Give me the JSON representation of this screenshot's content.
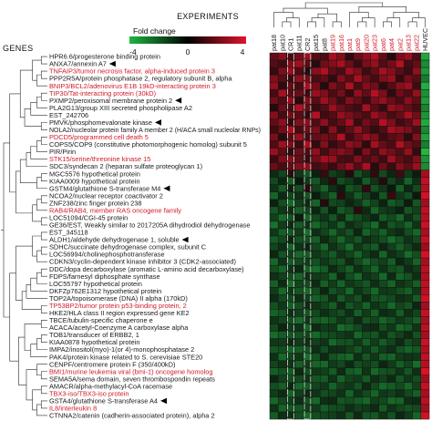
{
  "header": {
    "experiments_title": "EXPERIMENTS",
    "genes_title": "GENES"
  },
  "scale": {
    "title": "Fold change",
    "min_label": "-4",
    "mid_label": "0",
    "max_label": "4",
    "colors": {
      "low": "#1fb541",
      "mid": "#000000",
      "high": "#e0142a"
    }
  },
  "samples": [
    {
      "label": "pat18",
      "color": "#1a1a1a"
    },
    {
      "label": "pat10",
      "color": "#1a1a1a"
    },
    {
      "label": "CR1",
      "color": "#1a1a1a"
    },
    {
      "label": "pat11",
      "color": "#1a1a1a"
    },
    {
      "label": "CR2",
      "color": "#1a1a1a"
    },
    {
      "label": "pat15",
      "color": "#1a1a1a"
    },
    {
      "label": "pat8",
      "color": "#1a1a1a"
    },
    {
      "label": "pat19",
      "color": "#d11a2a"
    },
    {
      "label": "pat16",
      "color": "#d11a2a"
    },
    {
      "label": "pat1",
      "color": "#d11a2a"
    },
    {
      "label": "pat9",
      "color": "#d11a2a"
    },
    {
      "label": "pat20",
      "color": "#d11a2a"
    },
    {
      "label": "pat23",
      "color": "#d11a2a"
    },
    {
      "label": "pat6",
      "color": "#d11a2a"
    },
    {
      "label": "pat4",
      "color": "#d11a2a"
    },
    {
      "label": "pat2",
      "color": "#d11a2a"
    },
    {
      "label": "pat13",
      "color": "#d11a2a"
    },
    {
      "label": "pat22",
      "color": "#d11a2a"
    },
    {
      "label": "HUVEC",
      "color": "#1a1a1a"
    }
  ],
  "genes": [
    {
      "label": "HPR6.6/progesterone binding protein",
      "color": "#1a1a1a",
      "marked": false
    },
    {
      "label": "ANXA7/annexin A7",
      "color": "#1a1a1a",
      "marked": true
    },
    {
      "label": "TNFAIP3/tumor necrosis factor, alpha-induced protein 3",
      "color": "#d11a2a",
      "marked": false
    },
    {
      "label": "PPP2R5A/protein phosphatase 2, regulatory subunit B, alpha",
      "color": "#1a1a1a",
      "marked": false
    },
    {
      "label": "BNIP3/BCL2/adenovirus E1B 19kD-interacting protein 3",
      "color": "#d11a2a",
      "marked": false
    },
    {
      "label": "TIP30/Tat-interacting protein (30kD)",
      "color": "#d11a2a",
      "marked": false
    },
    {
      "label": "PXMP2/peroxisomal membrane protein 2",
      "color": "#1a1a1a",
      "marked": true
    },
    {
      "label": "PLA2G13/group XIII secreted phospholipase A2",
      "color": "#1a1a1a",
      "marked": false
    },
    {
      "label": "EST_242706",
      "color": "#1a1a1a",
      "marked": false
    },
    {
      "label": "PMVK/phosphomevalonate kinase",
      "color": "#1a1a1a",
      "marked": true
    },
    {
      "label": "NOLA2/nucleolar protein family A member 2 (H/ACA small nucleolar RNPs)",
      "color": "#1a1a1a",
      "marked": false
    },
    {
      "label": "PDCD5/programmed cell death 5",
      "color": "#d11a2a",
      "marked": false
    },
    {
      "label": "COPS5/COP9 (constitutive photomorphogenic homolog) subunit 5",
      "color": "#1a1a1a",
      "marked": false
    },
    {
      "label": "PIR/Pirin",
      "color": "#1a1a1a",
      "marked": false
    },
    {
      "label": "STK15/serine/threonine kinase 15",
      "color": "#d11a2a",
      "marked": false
    },
    {
      "label": "SDC3/syndecan 2 (heparan sulfate proteoglycan 1)",
      "color": "#1a1a1a",
      "marked": false
    },
    {
      "label": "MGC5576 hypothetical protein",
      "color": "#1a1a1a",
      "marked": false
    },
    {
      "label": "KIAA0009 hypothetical protein",
      "color": "#1a1a1a",
      "marked": false
    },
    {
      "label": "GSTM4/glutathione S-transferase M4",
      "color": "#1a1a1a",
      "marked": true
    },
    {
      "label": "NCOA2/nuclear receptor coactivator 2",
      "color": "#1a1a1a",
      "marked": false
    },
    {
      "label": "ZNF238/zinc finger protein 238",
      "color": "#1a1a1a",
      "marked": false
    },
    {
      "label": "RAB4/RAB4, member RAS oncogene family",
      "color": "#d11a2a",
      "marked": false
    },
    {
      "label": "LOC51094/CGI-45 protein",
      "color": "#1a1a1a",
      "marked": false
    },
    {
      "label": "GE36/EST, Weakly similar to 2017205A dihydrodiol dehydrogenase",
      "color": "#1a1a1a",
      "marked": false
    },
    {
      "label": "EST_345118",
      "color": "#1a1a1a",
      "marked": false
    },
    {
      "label": "ALDH1/aldehyde dehydrogenase 1, soluble",
      "color": "#1a1a1a",
      "marked": true
    },
    {
      "label": "SDHC/succinate dehydrogenase complex, subunit C",
      "color": "#1a1a1a",
      "marked": false
    },
    {
      "label": "LOC56994/cholinephosphotransferase",
      "color": "#1a1a1a",
      "marked": false
    },
    {
      "label": "CDKN3/cyclin-dependent kinase inhibitor 3 (CDK2-associated)",
      "color": "#1a1a1a",
      "marked": false
    },
    {
      "label": "DDC/dopa decarboxylase (aromatic L-amino acid decarboxylase)",
      "color": "#1a1a1a",
      "marked": false
    },
    {
      "label": "FDPS/farnesyl diphosphate synthase",
      "color": "#1a1a1a",
      "marked": false
    },
    {
      "label": "LOC55797 hypothetical protein",
      "color": "#1a1a1a",
      "marked": false
    },
    {
      "label": "DKFZp762E1312 hypothetical protein",
      "color": "#1a1a1a",
      "marked": false
    },
    {
      "label": "TOP2A/topoisomerase (DNA) II alpha (170kD)",
      "color": "#1a1a1a",
      "marked": false
    },
    {
      "label": "TP53BP2/tumor protein p53-binding protein, 2",
      "color": "#d11a2a",
      "marked": false
    },
    {
      "label": "HKE2/HLA class II region expressed gene KE2",
      "color": "#1a1a1a",
      "marked": false
    },
    {
      "label": "TBCE/tubulin-specific chaperone e",
      "color": "#1a1a1a",
      "marked": false
    },
    {
      "label": "ACACA/acetyl-Coenzyme A carboxylase alpha",
      "color": "#1a1a1a",
      "marked": false
    },
    {
      "label": "TOB1/transducer of ERBB2, 1",
      "color": "#1a1a1a",
      "marked": false
    },
    {
      "label": "KIAA0878 hypothetical protein",
      "color": "#1a1a1a",
      "marked": false
    },
    {
      "label": "IMPA2/inositol(myo)-1(or 4)-monophosphatase 2",
      "color": "#1a1a1a",
      "marked": false
    },
    {
      "label": "PAK4/protein kinase related to S. cerevisiae STE20",
      "color": "#1a1a1a",
      "marked": false
    },
    {
      "label": "CENPF/centromere protein F (350/400kD)",
      "color": "#1a1a1a",
      "marked": false
    },
    {
      "label": "BMI1/murine leukemia viral (bmi-1) oncogene homolog",
      "color": "#d11a2a",
      "marked": false
    },
    {
      "label": "SEMA5A/sema domain, seven thrombospondin repeats",
      "color": "#1a1a1a",
      "marked": false
    },
    {
      "label": "AMACR/alpha-methylacyl-CoA racemase",
      "color": "#1a1a1a",
      "marked": false
    },
    {
      "label": "TBX3-iso/TBX3-iso protein",
      "color": "#d11a2a",
      "marked": false
    },
    {
      "label": "GSTA4/glutathione S-transferase A4",
      "color": "#1a1a1a",
      "marked": true
    },
    {
      "label": "IL8/interleukin 8",
      "color": "#d11a2a",
      "marked": false
    },
    {
      "label": "CTNNA2/catenin (cadherin-associated protein), alpha 2",
      "color": "#1a1a1a",
      "marked": false
    }
  ],
  "heatmap_matrix": [
    [
      1.4,
      2.1,
      0.8,
      1.7,
      2.3,
      1.1,
      0.9,
      2.6,
      1.9,
      0.4,
      1.5,
      2.2,
      2.8,
      1.3,
      0.2,
      1.8,
      2.4,
      1.0,
      -3.4
    ],
    [
      1.1,
      0.7,
      1.9,
      2.5,
      1.2,
      0.3,
      1.6,
      2.0,
      2.7,
      1.5,
      0.6,
      1.8,
      2.3,
      1.0,
      1.7,
      2.9,
      0.8,
      1.4,
      -2.8
    ],
    [
      0.5,
      1.8,
      2.4,
      1.0,
      0.2,
      2.1,
      2.8,
      1.3,
      0.9,
      2.5,
      1.9,
      0.7,
      1.4,
      2.6,
      2.0,
      1.2,
      0.6,
      2.2,
      -3.1
    ],
    [
      1.9,
      1.2,
      0.6,
      2.2,
      1.6,
      0.9,
      1.3,
      0.4,
      2.0,
      1.1,
      2.7,
      1.5,
      0.8,
      1.9,
      2.4,
      0.5,
      1.7,
      1.2,
      -2.4
    ],
    [
      2.3,
      0.4,
      1.4,
      0.8,
      2.6,
      1.7,
      0.2,
      1.9,
      1.2,
      2.8,
      0.9,
      2.0,
      1.6,
      0.3,
      1.1,
      2.1,
      2.5,
      0.7,
      -3.6
    ],
    [
      0.8,
      2.6,
      1.1,
      1.5,
      0.6,
      2.4,
      1.9,
      0.9,
      1.7,
      0.5,
      2.2,
      1.3,
      2.9,
      1.8,
      0.4,
      1.6,
      1.0,
      2.3,
      -2.9
    ],
    [
      1.6,
      1.0,
      2.2,
      0.3,
      1.9,
      1.2,
      2.5,
      1.6,
      0.7,
      2.0,
      1.4,
      0.6,
      1.8,
      2.3,
      1.5,
      0.9,
      2.1,
      1.3,
      -3.2
    ],
    [
      0.2,
      1.5,
      0.9,
      2.8,
      1.3,
      0.6,
      1.1,
      2.4,
      1.5,
      1.0,
      0.7,
      2.6,
      1.2,
      0.5,
      2.3,
      1.9,
      1.4,
      0.8,
      -2.6
    ],
    [
      2.0,
      0.8,
      1.7,
      1.2,
      0.4,
      2.9,
      0.7,
      1.1,
      2.3,
      1.8,
      1.3,
      0.9,
      2.4,
      1.7,
      0.8,
      1.4,
      2.7,
      1.6,
      -3.0
    ],
    [
      1.3,
      2.2,
      0.5,
      1.9,
      2.1,
      1.0,
      2.2,
      0.8,
      1.4,
      2.6,
      0.6,
      1.7,
      1.1,
      2.9,
      1.9,
      0.7,
      1.2,
      2.5,
      -3.5
    ],
    [
      0.7,
      1.6,
      2.7,
      0.9,
      1.5,
      1.8,
      0.4,
      2.1,
      0.6,
      1.3,
      2.4,
      1.2,
      0.5,
      1.0,
      2.6,
      2.2,
      1.8,
      0.9,
      -2.7
    ],
    [
      1.8,
      0.3,
      1.2,
      2.4,
      0.8,
      1.4,
      1.7,
      1.3,
      2.8,
      0.7,
      1.6,
      2.3,
      1.9,
      0.6,
      1.2,
      1.5,
      0.4,
      2.0,
      -3.3
    ],
    [
      1.0,
      2.5,
      1.8,
      0.6,
      2.7,
      0.5,
      2.0,
      0.5,
      1.1,
      2.2,
      1.8,
      0.4,
      2.6,
      1.4,
      0.9,
      2.8,
      1.6,
      1.1,
      -2.5
    ],
    [
      2.4,
      1.3,
      0.4,
      1.6,
      1.0,
      2.2,
      0.8,
      1.7,
      2.1,
      1.6,
      0.3,
      1.9,
      0.8,
      2.2,
      1.7,
      1.0,
      2.3,
      0.5,
      -3.8
    ],
    [
      0.6,
      1.9,
      2.0,
      1.3,
      0.5,
      1.6,
      2.6,
      2.3,
      0.9,
      0.8,
      2.0,
      1.0,
      1.5,
      0.7,
      2.5,
      1.3,
      0.9,
      1.9,
      -3.0
    ],
    [
      1.5,
      0.9,
      1.3,
      2.0,
      2.2,
      0.8,
      1.2,
      0.6,
      1.6,
      2.4,
      1.1,
      2.7,
      0.3,
      1.6,
      0.6,
      2.0,
      1.3,
      2.4,
      -2.8
    ],
    [
      -0.6,
      -1.2,
      0.3,
      -0.9,
      -1.6,
      -0.4,
      0.5,
      -1.1,
      -0.7,
      0.2,
      -1.5,
      -0.8,
      0.4,
      -1.3,
      -0.5,
      0.6,
      -1.0,
      -0.3,
      2.6
    ],
    [
      -1.3,
      -0.5,
      -1.8,
      -0.2,
      -0.9,
      -1.6,
      -0.6,
      0.3,
      -1.4,
      -1.0,
      -0.4,
      -1.7,
      -0.8,
      0.2,
      -1.2,
      -0.6,
      -1.9,
      -0.7,
      3.1
    ],
    [
      -0.8,
      -1.7,
      -0.4,
      -1.4,
      0.2,
      -1.1,
      -1.9,
      -0.7,
      -0.3,
      -1.6,
      -1.2,
      0.4,
      -1.5,
      -0.9,
      -0.2,
      -1.8,
      -0.5,
      -1.3,
      2.8
    ],
    [
      -1.9,
      -0.6,
      -1.2,
      -0.7,
      -1.5,
      -0.3,
      -1.0,
      -1.8,
      0.3,
      -0.8,
      -1.7,
      -1.1,
      -0.4,
      -1.6,
      0.5,
      -0.9,
      -1.4,
      -0.2,
      3.4
    ],
    [
      -0.4,
      -1.4,
      -2.0,
      -1.1,
      -0.6,
      -1.9,
      0.2,
      -1.3,
      -1.1,
      -0.5,
      -0.9,
      -1.8,
      -1.2,
      -0.4,
      -1.7,
      -1.3,
      -0.3,
      -1.6,
      2.5
    ],
    [
      -1.6,
      -0.9,
      -0.7,
      -1.8,
      -1.2,
      -0.5,
      -1.5,
      -0.4,
      -1.7,
      -1.3,
      0.3,
      -0.6,
      -1.9,
      -1.0,
      -0.8,
      -0.4,
      -1.6,
      -1.1,
      3.0
    ],
    [
      -1.1,
      -2.1,
      -1.5,
      -0.3,
      -1.9,
      -1.3,
      -0.8,
      -1.6,
      -0.6,
      -1.9,
      -1.4,
      -0.9,
      -0.5,
      -1.7,
      -1.3,
      -2.0,
      -0.7,
      -1.5,
      2.9
    ],
    [
      -2.2,
      -1.0,
      -0.6,
      -1.7,
      -0.8,
      -2.0,
      -1.4,
      -0.9,
      -1.8,
      -0.7,
      -1.1,
      -1.5,
      -2.1,
      -0.6,
      -1.6,
      -1.2,
      -1.9,
      -0.8,
      3.3
    ],
    [
      -0.9,
      -1.8,
      -1.6,
      -1.0,
      -2.1,
      -0.7,
      -1.2,
      -2.0,
      -1.0,
      -1.5,
      -0.5,
      -1.9,
      -1.3,
      -1.8,
      -0.9,
      -0.6,
      -1.4,
      -2.0,
      2.7
    ],
    [
      -1.7,
      -1.3,
      -0.5,
      -1.5,
      -1.4,
      -1.8,
      -0.6,
      -1.2,
      -2.0,
      -1.1,
      -1.6,
      -0.7,
      -1.0,
      -1.4,
      -2.1,
      -1.5,
      -0.8,
      -1.3,
      3.2
    ],
    [
      -1.2,
      -0.7,
      -1.9,
      -0.8,
      -0.5,
      -1.2,
      -2.0,
      -0.8,
      -1.3,
      -2.1,
      -0.9,
      -1.4,
      -1.7,
      -0.5,
      -1.1,
      -1.8,
      -1.2,
      -0.6,
      2.4
    ],
    [
      -0.5,
      -1.5,
      -1.1,
      -2.0,
      -1.7,
      -0.9,
      -1.3,
      -1.7,
      -0.8,
      -1.2,
      -1.9,
      -1.0,
      -0.6,
      -1.9,
      -0.7,
      -1.1,
      -2.1,
      -1.4,
      3.5
    ],
    [
      -2.0,
      -0.8,
      -1.7,
      -1.3,
      -1.0,
      -1.5,
      -0.9,
      -1.4,
      -1.6,
      -0.6,
      -1.3,
      -2.0,
      -1.4,
      -1.1,
      -1.8,
      -0.5,
      -1.0,
      -1.9,
      2.6
    ],
    [
      -1.4,
      -1.9,
      -0.8,
      -0.6,
      -1.8,
      -2.1,
      -1.7,
      -0.6,
      -1.2,
      -1.8,
      -0.7,
      -1.2,
      -1.9,
      -0.8,
      -1.4,
      -1.6,
      -0.6,
      -1.0,
      3.0
    ],
    [
      -0.7,
      -1.1,
      -1.4,
      -1.9,
      -0.7,
      -1.0,
      -1.1,
      -1.9,
      -0.5,
      -1.4,
      -2.0,
      -0.8,
      -1.1,
      -2.0,
      -0.6,
      -1.9,
      -1.5,
      -0.7,
      2.8
    ],
    [
      -1.8,
      -0.6,
      -2.1,
      -1.2,
      -1.3,
      -0.6,
      -1.8,
      -1.0,
      -1.9,
      -0.9,
      -1.2,
      -1.6,
      -0.7,
      -1.3,
      -1.9,
      -0.8,
      -1.1,
      -1.8,
      3.1
    ],
    [
      -1.0,
      -2.0,
      -0.9,
      -1.6,
      -2.0,
      -1.4,
      -0.5,
      -1.5,
      -1.1,
      -2.0,
      -0.8,
      -1.3,
      -2.0,
      -0.9,
      -1.0,
      -1.4,
      -1.8,
      -0.9,
      2.9
    ],
    [
      -0.6,
      -1.3,
      -1.3,
      -0.7,
      -1.1,
      -1.8,
      -1.6,
      -0.7,
      -1.7,
      -1.0,
      -1.5,
      -0.6,
      -1.5,
      -1.6,
      -1.3,
      -0.7,
      -0.9,
      -1.7,
      3.4
    ],
    [
      -1.5,
      -0.9,
      -1.8,
      -1.4,
      -0.6,
      -0.8,
      -1.2,
      -1.8,
      -0.6,
      -1.6,
      -1.1,
      -1.9,
      -0.8,
      -1.2,
      -2.0,
      -1.2,
      -1.6,
      -0.5,
      2.5
    ],
    [
      -1.9,
      -1.6,
      -0.7,
      -1.1,
      -1.6,
      -1.3,
      -0.7,
      -1.1,
      -1.4,
      -0.7,
      -1.8,
      -1.0,
      -1.8,
      -0.6,
      -0.8,
      -1.7,
      -0.7,
      -1.2,
      3.2
    ],
    [
      -0.8,
      -1.2,
      -1.5,
      -2.1,
      -0.9,
      -1.7,
      -1.9,
      -1.6,
      -0.9,
      -1.3,
      -0.6,
      -1.5,
      -1.2,
      -1.9,
      -1.5,
      -0.9,
      -1.3,
      -1.8,
      2.7
    ],
    [
      -1.3,
      -0.5,
      -1.0,
      -0.8,
      -1.9,
      -0.6,
      -1.0,
      -0.9,
      -2.1,
      -1.8,
      -1.3,
      -0.7,
      -0.6,
      -1.4,
      -0.9,
      -2.0,
      -1.7,
      -0.8,
      3.0
    ],
    [
      -2.1,
      -1.7,
      -1.6,
      -1.5,
      -1.2,
      -2.0,
      -1.5,
      -1.3,
      -1.0,
      -0.8,
      -2.0,
      -1.4,
      -1.6,
      -0.7,
      -1.6,
      -1.1,
      -0.6,
      -1.5,
      2.6
    ],
    [
      -0.9,
      -1.0,
      -0.6,
      -1.0,
      -0.7,
      -1.1,
      -0.8,
      -2.0,
      -1.5,
      -1.5,
      -0.9,
      -1.8,
      -1.0,
      -1.7,
      -1.2,
      -0.6,
      -1.4,
      -1.0,
      3.3
    ],
    [
      -1.6,
      -1.4,
      -1.9,
      -1.7,
      -1.5,
      -0.7,
      -1.4,
      -0.7,
      -0.7,
      -1.1,
      -1.6,
      -0.9,
      -1.7,
      -1.0,
      -0.7,
      -1.5,
      -1.9,
      -1.6,
      2.8
    ],
    [
      -0.7,
      -2.0,
      -1.2,
      -0.9,
      -2.1,
      -1.5,
      -0.6,
      -1.5,
      -1.8,
      -2.0,
      -0.7,
      -1.6,
      -0.9,
      -1.8,
      -1.9,
      -1.0,
      -0.8,
      -0.9,
      3.1
    ],
    [
      -1.2,
      -0.8,
      -0.8,
      -1.8,
      -1.0,
      -1.9,
      -2.0,
      -1.0,
      -1.3,
      -0.6,
      -1.4,
      -1.1,
      -1.4,
      -0.5,
      -1.0,
      -1.8,
      -1.2,
      -2.1,
      2.9
    ],
    [
      -1.8,
      -1.5,
      -1.7,
      -0.6,
      -1.4,
      -0.9,
      -1.1,
      -1.7,
      -0.6,
      -1.7,
      -1.9,
      -0.8,
      -2.0,
      -1.5,
      -1.4,
      -0.8,
      -1.6,
      -0.7,
      3.6
    ],
    [
      -0.5,
      -1.1,
      -1.4,
      -1.3,
      -0.8,
      -1.6,
      -1.7,
      -0.8,
      -1.9,
      -1.2,
      -1.0,
      -1.7,
      -0.7,
      -1.1,
      -0.6,
      -1.6,
      -0.9,
      -1.4,
      2.5
    ],
    [
      -1.4,
      -1.8,
      -0.5,
      -2.0,
      -1.7,
      -1.2,
      -0.9,
      -1.9,
      -1.1,
      -0.9,
      -1.5,
      -0.6,
      -1.3,
      -2.0,
      -1.7,
      -1.3,
      -2.0,
      -1.1,
      3.2
    ],
    [
      -1.0,
      -0.6,
      -1.9,
      -1.1,
      -0.6,
      -0.8,
      -1.4,
      -1.2,
      -0.8,
      -1.9,
      -0.8,
      -1.3,
      -1.9,
      -0.9,
      -1.1,
      -0.7,
      -1.3,
      -1.8,
      2.7
    ],
    [
      -2.0,
      -1.3,
      -1.1,
      -0.7,
      -1.5,
      -2.0,
      -0.7,
      -0.6,
      -1.6,
      -1.4,
      -1.7,
      -2.0,
      -1.1,
      -1.3,
      -2.0,
      -1.9,
      -0.7,
      -0.6,
      3.0
    ],
    [
      -0.8,
      -1.9,
      -1.6,
      -1.6,
      -1.1,
      -1.0,
      -1.8,
      -1.4,
      -1.3,
      -0.7,
      -1.1,
      -0.9,
      -0.6,
      -1.7,
      -0.8,
      -1.2,
      -1.5,
      -1.3,
      2.6
    ],
    [
      -1.7,
      -0.7,
      -0.7,
      -1.4,
      -2.0,
      -1.4,
      -1.2,
      -1.1,
      -0.7,
      -1.6,
      -0.6,
      -1.5,
      -1.6,
      -0.8,
      -1.5,
      -0.5,
      -1.0,
      -1.9,
      3.4
    ]
  ]
}
